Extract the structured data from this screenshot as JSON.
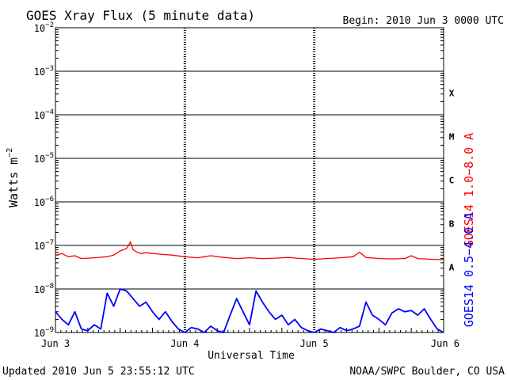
{
  "header": {
    "title": "GOES Xray Flux (5 minute data)",
    "begin": "Begin:  2010 Jun 3 0000 UTC"
  },
  "footer": {
    "updated": "Updated 2010 Jun  5 23:55:12 UTC",
    "credit": "NOAA/SWPC Boulder, CO USA"
  },
  "chart_data": {
    "type": "line",
    "title": "GOES Xray Flux (5 minute data)",
    "xlabel": "Universal Time",
    "ylabel": "Watts m^-2",
    "ylabel_parts": {
      "base": "Watts m",
      "sup": "−2"
    },
    "y_scale": "log",
    "ylim": [
      1e-09,
      0.01
    ],
    "y_ticks": [
      {
        "base": "10",
        "exp": "−9"
      },
      {
        "base": "10",
        "exp": "−8"
      },
      {
        "base": "10",
        "exp": "−7"
      },
      {
        "base": "10",
        "exp": "−6"
      },
      {
        "base": "10",
        "exp": "−5"
      },
      {
        "base": "10",
        "exp": "−4"
      },
      {
        "base": "10",
        "exp": "−3"
      },
      {
        "base": "10",
        "exp": "−2"
      }
    ],
    "x_ticks": [
      "Jun 3",
      "Jun 4",
      "Jun 5",
      "Jun 6"
    ],
    "xlim_days": [
      0,
      3
    ],
    "flare_classes": [
      "A",
      "B",
      "C",
      "M",
      "X"
    ],
    "grid": true,
    "series": [
      {
        "name": "GOES14 1.0−8.0 A",
        "color": "#ff0000",
        "x_days": [
          0,
          0.05,
          0.1,
          0.15,
          0.2,
          0.3,
          0.4,
          0.45,
          0.5,
          0.55,
          0.58,
          0.6,
          0.63,
          0.66,
          0.7,
          0.8,
          0.9,
          1.0,
          1.1,
          1.2,
          1.3,
          1.4,
          1.5,
          1.6,
          1.7,
          1.8,
          1.9,
          2.0,
          2.1,
          2.2,
          2.3,
          2.35,
          2.4,
          2.5,
          2.6,
          2.7,
          2.75,
          2.8,
          2.9,
          3.0
        ],
        "values": [
          6e-08,
          6.5e-08,
          5.5e-08,
          5.8e-08,
          5e-08,
          5.2e-08,
          5.5e-08,
          6e-08,
          7.5e-08,
          8.5e-08,
          1.2e-07,
          8e-08,
          7e-08,
          6.5e-08,
          6.8e-08,
          6.3e-08,
          6e-08,
          5.5e-08,
          5.2e-08,
          5.8e-08,
          5.3e-08,
          5e-08,
          5.2e-08,
          5e-08,
          5.1e-08,
          5.3e-08,
          5e-08,
          4.8e-08,
          5e-08,
          5.2e-08,
          5.5e-08,
          7e-08,
          5.3e-08,
          5e-08,
          4.9e-08,
          5e-08,
          5.8e-08,
          5e-08,
          4.8e-08,
          4.7e-08
        ]
      },
      {
        "name": "GOES14 0.5−4.0 A",
        "color": "#0000ff",
        "x_days": [
          0,
          0.05,
          0.1,
          0.15,
          0.2,
          0.25,
          0.3,
          0.35,
          0.4,
          0.45,
          0.5,
          0.55,
          0.6,
          0.65,
          0.7,
          0.75,
          0.8,
          0.85,
          0.9,
          0.95,
          1.0,
          1.05,
          1.1,
          1.15,
          1.2,
          1.25,
          1.3,
          1.35,
          1.4,
          1.45,
          1.5,
          1.55,
          1.6,
          1.65,
          1.7,
          1.75,
          1.8,
          1.85,
          1.9,
          1.95,
          2.0,
          2.05,
          2.1,
          2.15,
          2.2,
          2.25,
          2.3,
          2.35,
          2.4,
          2.45,
          2.5,
          2.55,
          2.6,
          2.65,
          2.7,
          2.75,
          2.8,
          2.85,
          2.9,
          2.95,
          3.0
        ],
        "values": [
          3e-09,
          2e-09,
          1.5e-09,
          3e-09,
          1.2e-09,
          1.1e-09,
          1.5e-09,
          1.2e-09,
          8e-09,
          4e-09,
          1e-08,
          9e-09,
          6e-09,
          4e-09,
          5e-09,
          3e-09,
          2e-09,
          3e-09,
          1.8e-09,
          1.2e-09,
          1e-09,
          1.3e-09,
          1.2e-09,
          1e-09,
          1.4e-09,
          1.1e-09,
          1e-09,
          2.5e-09,
          6e-09,
          3e-09,
          1.5e-09,
          9e-09,
          5e-09,
          3e-09,
          2e-09,
          2.5e-09,
          1.5e-09,
          2e-09,
          1.3e-09,
          1.1e-09,
          1e-09,
          1.2e-09,
          1.1e-09,
          1e-09,
          1.3e-09,
          1.1e-09,
          1.2e-09,
          1.4e-09,
          5e-09,
          2.5e-09,
          2e-09,
          1.5e-09,
          2.8e-09,
          3.5e-09,
          3e-09,
          3.2e-09,
          2.5e-09,
          3.5e-09,
          2e-09,
          1.2e-09,
          1e-09
        ]
      }
    ]
  },
  "colors": {
    "grid": "#000000",
    "long_channel": "#ff0000",
    "short_channel": "#0000ff"
  }
}
